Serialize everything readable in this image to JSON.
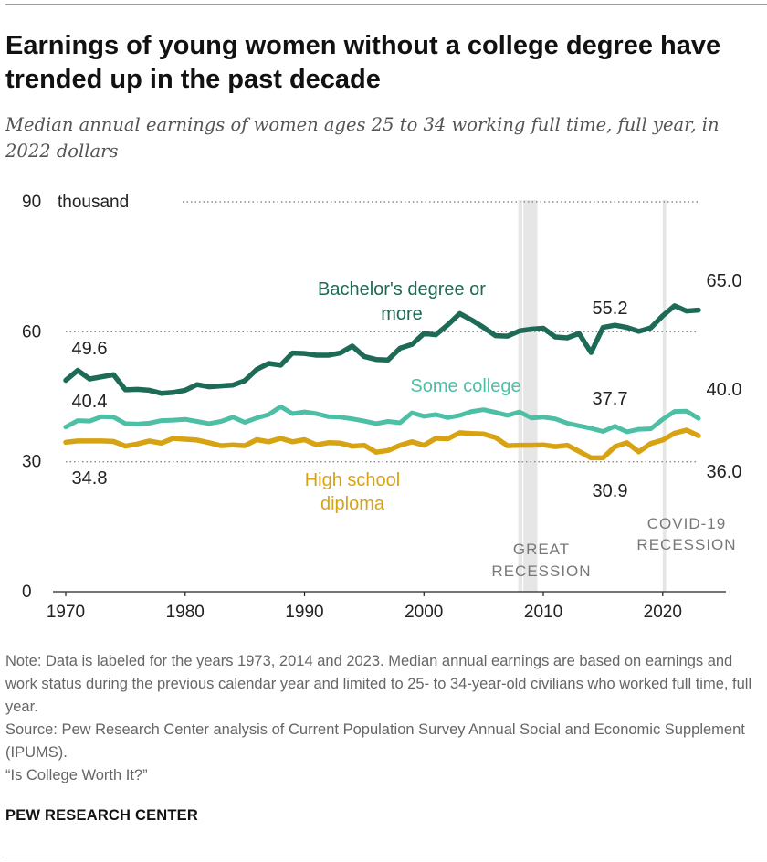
{
  "header": {
    "title": "Earnings of young women without a college degree have trended up in the past decade",
    "subtitle": "Median annual earnings of women ages 25 to 34 working full time, full year, in 2022 dollars"
  },
  "chart_data": {
    "type": "line",
    "title": "Earnings of young women without a college degree have trended up in the past decade",
    "subtitle": "Median annual earnings of women ages 25 to 34 working full time, full year, in 2022 dollars",
    "xlabel": "",
    "ylabel": "",
    "xlim": [
      1970,
      2023
    ],
    "ylim": [
      0,
      90
    ],
    "x_ticks": [
      "1970",
      "1980",
      "1990",
      "2000",
      "2010",
      "2020"
    ],
    "y_ticks": [
      {
        "value": 0,
        "label": "0"
      },
      {
        "value": 30,
        "label": "30"
      },
      {
        "value": 60,
        "label": "60"
      },
      {
        "value": 90,
        "label": "90"
      }
    ],
    "y_unit_label": "thousand",
    "grid": "dotted horizontal",
    "colors": {
      "bachelors": "#1d6a56",
      "some_college": "#4dbfa4",
      "high_school": "#d8a313",
      "recession": "#e6e6e6",
      "axis": "#222222"
    },
    "x": [
      1970,
      1971,
      1972,
      1973,
      1974,
      1975,
      1976,
      1977,
      1978,
      1979,
      1980,
      1981,
      1982,
      1983,
      1984,
      1985,
      1986,
      1987,
      1988,
      1989,
      1990,
      1991,
      1992,
      1993,
      1994,
      1995,
      1996,
      1997,
      1998,
      1999,
      2000,
      2001,
      2002,
      2003,
      2004,
      2005,
      2006,
      2007,
      2008,
      2009,
      2010,
      2011,
      2012,
      2013,
      2014,
      2015,
      2016,
      2017,
      2018,
      2019,
      2020,
      2021,
      2022,
      2023
    ],
    "series": [
      {
        "key": "bachelors",
        "name": "Bachelor's degree or more",
        "label_lines": [
          "Bachelor's degree or",
          "more"
        ],
        "values": [
          48.8,
          51.1,
          49.1,
          49.6,
          50.1,
          46.6,
          46.7,
          46.5,
          45.8,
          46.0,
          46.5,
          47.8,
          47.3,
          47.5,
          47.7,
          48.7,
          51.3,
          52.7,
          52.3,
          55.1,
          55.0,
          54.6,
          54.6,
          55.1,
          56.7,
          54.3,
          53.6,
          53.5,
          56.2,
          57.1,
          59.6,
          59.3,
          61.6,
          64.2,
          62.7,
          61.0,
          59.1,
          59.0,
          60.2,
          60.6,
          60.8,
          58.8,
          58.6,
          59.6,
          55.2,
          61.0,
          61.5,
          61.0,
          60.1,
          60.9,
          63.7,
          66.0,
          64.8,
          65.0
        ]
      },
      {
        "key": "some_college",
        "name": "Some college",
        "label_lines": [
          "Some college"
        ],
        "values": [
          38.0,
          39.5,
          39.4,
          40.4,
          40.3,
          38.8,
          38.7,
          38.9,
          39.5,
          39.6,
          39.8,
          39.3,
          38.8,
          39.3,
          40.3,
          39.1,
          40.1,
          40.9,
          42.7,
          41.1,
          41.5,
          41.1,
          40.4,
          40.3,
          39.9,
          39.4,
          38.8,
          39.3,
          39.0,
          41.3,
          40.5,
          40.9,
          40.2,
          40.7,
          41.6,
          42.0,
          41.4,
          40.7,
          41.5,
          40.1,
          40.3,
          39.9,
          38.9,
          38.3,
          37.7,
          37.0,
          38.2,
          36.9,
          37.5,
          37.6,
          39.8,
          41.6,
          41.7,
          40.0
        ]
      },
      {
        "key": "high_school",
        "name": "High school diploma",
        "label_lines": [
          "High school",
          "diploma"
        ],
        "values": [
          34.5,
          34.8,
          34.8,
          34.8,
          34.7,
          33.6,
          34.1,
          34.8,
          34.3,
          35.4,
          35.2,
          35.0,
          34.4,
          33.7,
          33.9,
          33.7,
          35.1,
          34.6,
          35.4,
          34.6,
          35.1,
          33.9,
          34.4,
          34.3,
          33.6,
          33.8,
          32.2,
          32.6,
          33.8,
          34.6,
          33.8,
          35.4,
          35.3,
          36.7,
          36.5,
          36.4,
          35.6,
          33.7,
          33.8,
          33.8,
          33.9,
          33.5,
          33.8,
          32.4,
          30.9,
          30.9,
          33.5,
          34.4,
          32.3,
          34.2,
          35.0,
          36.6,
          37.3,
          36.0
        ]
      }
    ],
    "data_labels": [
      {
        "series": "bachelors",
        "year": 1973,
        "text": "49.6"
      },
      {
        "series": "bachelors",
        "year": 2014,
        "text": "55.2"
      },
      {
        "series": "bachelors",
        "year": 2023,
        "text": "65.0"
      },
      {
        "series": "some_college",
        "year": 1973,
        "text": "40.4"
      },
      {
        "series": "some_college",
        "year": 2014,
        "text": "37.7"
      },
      {
        "series": "some_college",
        "year": 2023,
        "text": "40.0"
      },
      {
        "series": "high_school",
        "year": 1973,
        "text": "34.8"
      },
      {
        "series": "high_school",
        "year": 2014,
        "text": "30.9"
      },
      {
        "series": "high_school",
        "year": 2023,
        "text": "36.0"
      }
    ],
    "recessions": [
      {
        "key": "great",
        "label_lines": [
          "GREAT",
          "RECESSION"
        ],
        "start": 2007.9,
        "end": 2009.5
      },
      {
        "key": "covid",
        "label_lines": [
          "COVID-19",
          "RECESSION"
        ],
        "start": 2020.0,
        "end": 2020.3
      }
    ]
  },
  "footer": {
    "note": "Note: Data is labeled for the years 1973, 2014 and 2023. Median annual earnings are based on earnings and work status during the previous calendar year and limited to 25- to 34-year-old civilians who worked full time, full year.",
    "source": "Source: Pew Research Center analysis of Current Population Survey Annual Social and Economic Supplement (IPUMS).",
    "report": "“Is College Worth It?”",
    "brand": "PEW RESEARCH CENTER"
  }
}
